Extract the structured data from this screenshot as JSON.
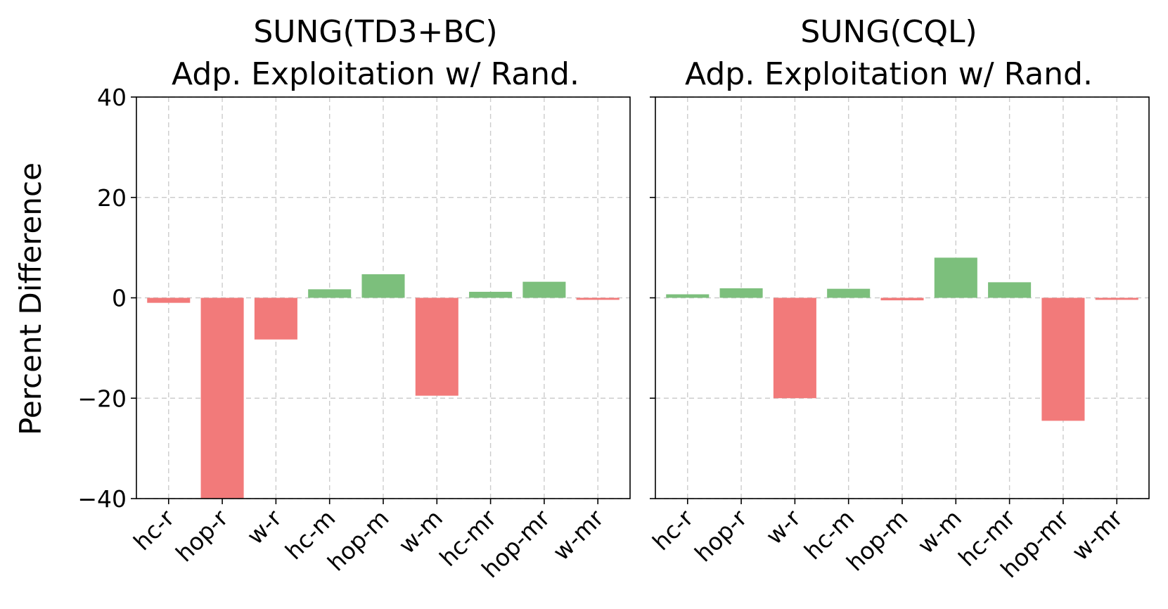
{
  "figure": {
    "ylabel": "Percent Difference",
    "positive_color": "#7cbf7c",
    "negative_color": "#f27a7a"
  },
  "chart_data": [
    {
      "type": "bar",
      "title_line1": "SUNG(TD3+BC)",
      "title_line2": "Adp. Exploitation w/ Rand.",
      "categories": [
        "hc-r",
        "hop-r",
        "w-r",
        "hc-m",
        "hop-m",
        "w-m",
        "hc-mr",
        "hop-mr",
        "w-mr"
      ],
      "values": [
        -1.0,
        -40.0,
        -8.3,
        1.7,
        4.7,
        -19.5,
        1.2,
        3.2,
        -0.4
      ],
      "ylabel": "Percent Difference",
      "ylim": [
        -40,
        40
      ],
      "yticks": [
        "−40",
        "−20",
        "0",
        "20",
        "40"
      ],
      "ytick_values": [
        -40,
        -20,
        0,
        20,
        40
      ],
      "grid": true
    },
    {
      "type": "bar",
      "title_line1": "SUNG(CQL)",
      "title_line2": "Adp. Exploitation w/ Rand.",
      "categories": [
        "hc-r",
        "hop-r",
        "w-r",
        "hc-m",
        "hop-m",
        "w-m",
        "hc-mr",
        "hop-mr",
        "w-mr"
      ],
      "values": [
        0.7,
        1.9,
        -20.0,
        1.8,
        -0.5,
        8.0,
        3.1,
        -24.5,
        -0.4
      ],
      "ylabel": "",
      "ylim": [
        -40,
        40
      ],
      "ytick_values": [
        -40,
        -20,
        0,
        20,
        40
      ],
      "grid": true
    }
  ]
}
